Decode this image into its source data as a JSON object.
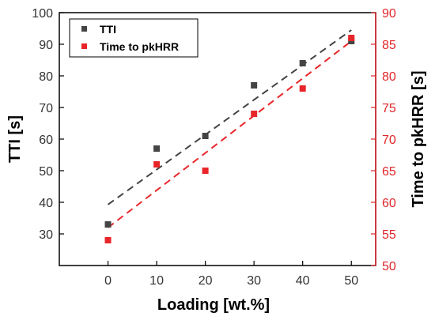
{
  "chart_data": {
    "type": "scatter",
    "xlabel": "Loading [wt.%]",
    "ylabel_left": "TTI [s]",
    "ylabel_right": "Time to pkHRR [s]",
    "xlim": [
      -10,
      55
    ],
    "ylim_left": [
      20,
      100
    ],
    "ylim_right": [
      50,
      90
    ],
    "x_ticks": [
      0,
      10,
      20,
      30,
      40,
      50
    ],
    "y_ticks_left": [
      30,
      40,
      50,
      60,
      70,
      80,
      90,
      100
    ],
    "y_ticks_right": [
      50,
      55,
      60,
      65,
      70,
      75,
      80,
      85,
      90
    ],
    "legend_position": "top-left",
    "series": [
      {
        "name": "TTI",
        "axis": "left",
        "color": "#444444",
        "marker": "square",
        "x": [
          0,
          10,
          20,
          30,
          40,
          50
        ],
        "y": [
          33,
          57,
          61,
          77,
          84,
          91
        ],
        "fit_line": {
          "style": "dashed",
          "x": [
            0,
            50
          ],
          "y": [
            39.3,
            94.5
          ]
        }
      },
      {
        "name": "Time to pkHRR",
        "axis": "right",
        "color": "#e8262a",
        "marker": "square",
        "x": [
          0,
          10,
          20,
          30,
          40,
          50
        ],
        "y": [
          54,
          66,
          65,
          74,
          78,
          86
        ],
        "fit_line": {
          "style": "dashed",
          "x": [
            0,
            50
          ],
          "y": [
            56,
            85.5
          ]
        }
      }
    ]
  }
}
